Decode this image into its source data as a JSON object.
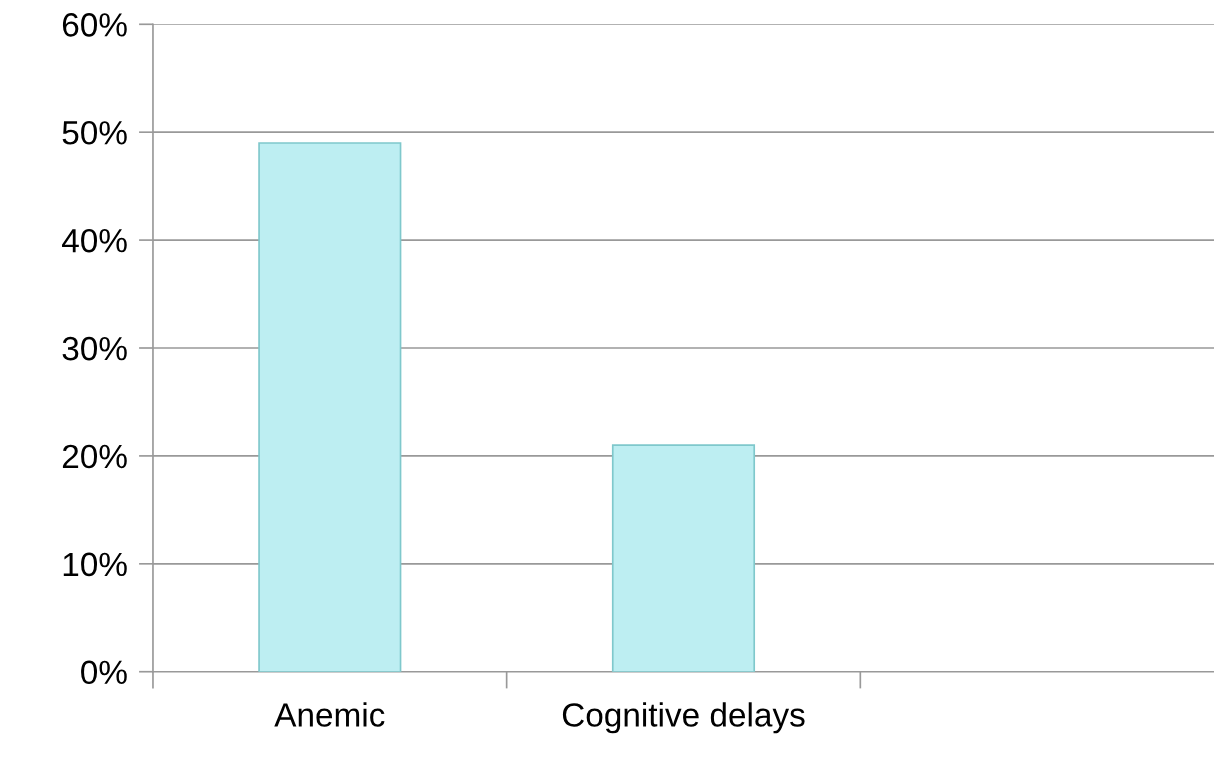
{
  "chart_data": {
    "type": "bar",
    "categories": [
      "Anemic",
      "Cognitive delays",
      null
    ],
    "values": [
      49,
      21,
      null
    ],
    "color": "#bdeef2",
    "ylim": [
      0,
      60
    ],
    "yticks": [
      {
        "value": 0,
        "label": "0%"
      },
      {
        "value": 10,
        "label": "10%"
      },
      {
        "value": 20,
        "label": "20%"
      },
      {
        "value": 30,
        "label": "30%"
      },
      {
        "value": 40,
        "label": "40%"
      },
      {
        "value": 50,
        "label": "50%"
      },
      {
        "value": 60,
        "label": "60%"
      }
    ],
    "grid": "y",
    "legend": false
  }
}
